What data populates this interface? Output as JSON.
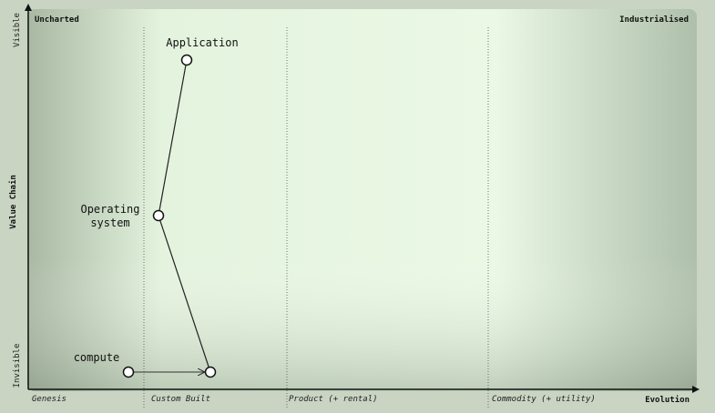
{
  "map": {
    "corner_left": "Uncharted",
    "corner_right": "Industrialised",
    "y_axis_title": "Value Chain",
    "y_axis_top": "Visible",
    "y_axis_bottom": "Invisible",
    "x_axis_title": "Evolution",
    "stages": [
      "Genesis",
      "Custom Built",
      "Product (+ rental)",
      "Commodity (+ utility)"
    ],
    "colors": {
      "background": "#e8f5e2",
      "line": "#222222",
      "node_fill": "#ffffff"
    }
  },
  "components": {
    "application": {
      "line1": "Application",
      "line2": ""
    },
    "os": {
      "line1": "Operating",
      "line2": "system"
    },
    "compute": {
      "line1": "compute",
      "line2": ""
    }
  },
  "relations": [
    {
      "from": "application",
      "to": "os"
    },
    {
      "from": "os",
      "to": "compute-evolved"
    }
  ],
  "movement": {
    "from": "compute",
    "to": "compute-evolved"
  }
}
